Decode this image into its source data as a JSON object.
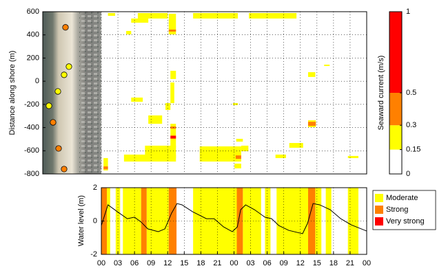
{
  "chart_data": [
    {
      "type": "heatmap",
      "ylabel": "Distance along shore (m)",
      "xlim": [
        0,
        48
      ],
      "ylim": [
        -800,
        600
      ],
      "yticks": [
        -800,
        -600,
        -400,
        -200,
        0,
        200,
        400,
        600
      ],
      "grid": true,
      "patches": [
        {
          "t": [
            1.2,
            2.5
          ],
          "y": [
            564,
            588
          ],
          "value": 0.2
        },
        {
          "t": [
            6.6,
            12.0
          ],
          "y": [
            541,
            588
          ],
          "value": 0.2
        },
        {
          "t": [
            16.6,
            24.7
          ],
          "y": [
            541,
            588
          ],
          "value": 0.2
        },
        {
          "t": [
            26.7,
            35.3
          ],
          "y": [
            541,
            588
          ],
          "value": 0.2
        },
        {
          "t": [
            5.4,
            8.5
          ],
          "y": [
            505,
            541
          ],
          "value": 0.2
        },
        {
          "t": [
            12.2,
            13.5
          ],
          "y": [
            404,
            582
          ],
          "value": 0.2
        },
        {
          "t": [
            4.5,
            5.4
          ],
          "y": [
            404,
            434
          ],
          "value": 0.2
        },
        {
          "t": [
            12.5,
            13.5
          ],
          "y": [
            19,
            90
          ],
          "value": 0.2
        },
        {
          "t": [
            12.5,
            13.2
          ],
          "y": [
            -189,
            -11
          ],
          "value": 0.2
        },
        {
          "t": [
            5.4,
            7.5
          ],
          "y": [
            -177,
            -141
          ],
          "value": 0.2
        },
        {
          "t": [
            8.5,
            11.0
          ],
          "y": [
            -367,
            -295
          ],
          "value": 0.2
        },
        {
          "t": [
            11.6,
            12.5
          ],
          "y": [
            -248,
            -189
          ],
          "value": 0.2
        },
        {
          "t": [
            12.5,
            13.5
          ],
          "y": [
            -574,
            -367
          ],
          "value": 0.2
        },
        {
          "t": [
            7.9,
            13.5
          ],
          "y": [
            -663,
            -556
          ],
          "value": 0.2
        },
        {
          "t": [
            4.1,
            13.5
          ],
          "y": [
            -693,
            -633
          ],
          "value": 0.2
        },
        {
          "t": [
            0.4,
            1.2
          ],
          "y": [
            -770,
            -663
          ],
          "value": 0.2
        },
        {
          "t": [
            17.8,
            25.3
          ],
          "y": [
            -693,
            -562
          ],
          "value": 0.2
        },
        {
          "t": [
            25.3,
            26.6
          ],
          "y": [
            -604,
            -556
          ],
          "value": 0.2
        },
        {
          "t": [
            24.1,
            25.3
          ],
          "y": [
            -752,
            -711
          ],
          "value": 0.2
        },
        {
          "t": [
            31.5,
            33.4
          ],
          "y": [
            -663,
            -633
          ],
          "value": 0.2
        },
        {
          "t": [
            34.0,
            36.5
          ],
          "y": [
            -574,
            -533
          ],
          "value": 0.2
        },
        {
          "t": [
            37.4,
            38.8
          ],
          "y": [
            -396,
            -337
          ],
          "value": 0.2
        },
        {
          "t": [
            37.4,
            38.7
          ],
          "y": [
            37,
            78
          ],
          "value": 0.2
        },
        {
          "t": [
            40.3,
            41.3
          ],
          "y": [
            131,
            143
          ],
          "value": 0.2
        },
        {
          "t": [
            44.6,
            46.5
          ],
          "y": [
            -663,
            -645
          ],
          "value": 0.2
        },
        {
          "t": [
            23.8,
            24.7
          ],
          "y": [
            -206,
            -189
          ],
          "value": 0.2
        },
        {
          "t": [
            24.4,
            25.6
          ],
          "y": [
            -521,
            -497
          ],
          "value": 0.2
        },
        {
          "t": [
            12.2,
            13.5
          ],
          "y": [
            428,
            446
          ],
          "value": 0.4
        },
        {
          "t": [
            12.5,
            13.5
          ],
          "y": [
            -410,
            -390
          ],
          "value": 0.4
        },
        {
          "t": [
            12.5,
            13.5
          ],
          "y": [
            -495,
            -470
          ],
          "value": 0.6
        },
        {
          "t": [
            0.4,
            1.2
          ],
          "y": [
            -760,
            -735
          ],
          "value": 0.4
        },
        {
          "t": [
            24.3,
            25.3
          ],
          "y": [
            -670,
            -640
          ],
          "value": 0.4
        },
        {
          "t": [
            37.4,
            38.8
          ],
          "y": [
            -385,
            -350
          ],
          "value": 0.4
        }
      ],
      "sensors": {
        "y": [
          465,
          126,
          55,
          -88,
          -212,
          -355,
          -580,
          -758
        ],
        "values": [
          0.4,
          0.2,
          0.2,
          0.2,
          0.2,
          0.4,
          0.4,
          0.4
        ]
      }
    },
    {
      "type": "colorbar",
      "ylabel": "Seaward current (m/s)",
      "ylim": [
        0,
        1
      ],
      "yticks": [
        0,
        0.15,
        0.3,
        0.5,
        1
      ],
      "colors": [
        "#ffffff",
        "#ffff00",
        "#ff8000",
        "#ff0000"
      ]
    },
    {
      "type": "line",
      "ylabel": "Water level (m)",
      "xlim": [
        0,
        48
      ],
      "ylim": [
        -2,
        2
      ],
      "yticks": [
        -2,
        0,
        2
      ],
      "grid": true,
      "xticks": [
        {
          "value": 0,
          "label": "00"
        },
        {
          "value": 3,
          "label": "03"
        },
        {
          "value": 6,
          "label": "06"
        },
        {
          "value": 9,
          "label": "09"
        },
        12,
        15,
        18,
        21,
        {
          "value": 24,
          "label": "00"
        },
        {
          "value": 27,
          "label": "03"
        },
        {
          "value": 30,
          "label": "06"
        },
        {
          "value": 33,
          "label": "09"
        },
        {
          "value": 36,
          "label": "12"
        },
        {
          "value": 39,
          "label": "15"
        },
        {
          "value": 42,
          "label": "18"
        },
        {
          "value": 45,
          "label": "21"
        },
        {
          "value": 48,
          "label": "00"
        }
      ],
      "x": [
        0,
        1.2,
        2.9,
        4.7,
        6.0,
        7.2,
        8.4,
        10.3,
        11.5,
        12.7,
        13.7,
        14.6,
        16.5,
        19.0,
        20.4,
        22.1,
        23.7,
        24.6,
        25.2,
        26.1,
        27.7,
        29.6,
        30.8,
        32.1,
        33.9,
        36.4,
        37.3,
        38.3,
        39.5,
        41.4,
        43.3,
        45.2,
        48.0
      ],
      "values": [
        -0.27,
        0.97,
        0.56,
        0.14,
        0.23,
        -0.06,
        -0.47,
        -0.64,
        -0.47,
        0.47,
        1.05,
        0.97,
        0.56,
        0.14,
        0.14,
        -0.35,
        -0.64,
        -0.35,
        0.68,
        0.97,
        0.68,
        0.23,
        0.14,
        -0.27,
        -0.56,
        -0.76,
        -0.14,
        1.05,
        0.97,
        0.68,
        0.14,
        -0.23,
        -0.6
      ],
      "color": "#000000",
      "legend": "right",
      "series": [
        {
          "name": "Moderate",
          "color": "#ffff00",
          "intervals": [
            [
              1.0,
              1.6
            ],
            [
              2.6,
              3.4
            ],
            [
              3.9,
              7.2
            ],
            [
              8.2,
              12.2
            ],
            [
              16.6,
              24.5
            ],
            [
              25.6,
              28.9
            ],
            [
              29.6,
              30.6
            ],
            [
              31.7,
              37.4
            ],
            [
              38.7,
              39.8
            ],
            [
              40.6,
              41.6
            ],
            [
              44.6,
              46.5
            ]
          ]
        },
        {
          "name": "Strong",
          "color": "#ff8000",
          "intervals": [
            [
              0,
              1.0
            ],
            [
              7.2,
              8.2
            ],
            [
              12.2,
              13.6
            ],
            [
              24.5,
              25.6
            ],
            [
              37.4,
              38.7
            ]
          ]
        },
        {
          "name": "Very strong",
          "color": "#ff0000",
          "intervals": []
        }
      ]
    }
  ]
}
